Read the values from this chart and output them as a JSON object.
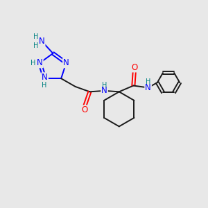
{
  "background_color": "#e8e8e8",
  "bond_color": "#1a1a1a",
  "nitrogen_color": "#0000ff",
  "oxygen_color": "#ff0000",
  "nh_color": "#008080",
  "font_size_atoms": 8.5,
  "font_size_h": 7.0,
  "line_width": 1.4,
  "fig_size": [
    3.0,
    3.0
  ],
  "dpi": 100,
  "xlim": [
    0,
    10
  ],
  "ylim": [
    0,
    10
  ]
}
